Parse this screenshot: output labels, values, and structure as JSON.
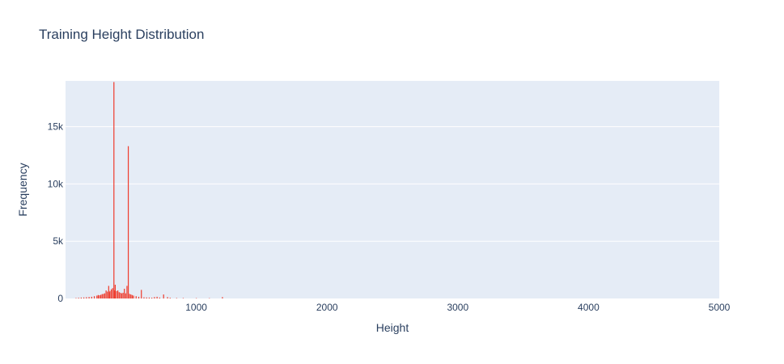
{
  "chart_data": {
    "type": "bar",
    "title": "Training Height Distribution",
    "xlabel": "Height",
    "ylabel": "Frequency",
    "xlim": [
      0,
      5000
    ],
    "ylim": [
      0,
      19000
    ],
    "x_ticks": [
      1000,
      2000,
      3000,
      4000,
      5000
    ],
    "x_tick_labels": [
      "1000",
      "2000",
      "3000",
      "4000",
      "5000"
    ],
    "y_ticks": [
      0,
      5000,
      10000,
      15000
    ],
    "y_tick_labels": [
      "0",
      "5k",
      "10k",
      "15k"
    ],
    "grid": true,
    "legend": "none",
    "bar_color": "#ef3b2c",
    "plot_background": "#e5ecf6",
    "series": [
      {
        "x": [
          80,
          100,
          120,
          140,
          160,
          180,
          200,
          220,
          240,
          250,
          260,
          270,
          280,
          290,
          300,
          310,
          320,
          330,
          333,
          340,
          350,
          360,
          370,
          375,
          380,
          390,
          400,
          410,
          420,
          430,
          440,
          450,
          460,
          470,
          480,
          490,
          500,
          510,
          520,
          540,
          560,
          580,
          600,
          620,
          640,
          660,
          680,
          700,
          720,
          750,
          780,
          800,
          850,
          900,
          1000,
          1100,
          1200
        ],
        "values": [
          40,
          60,
          80,
          90,
          110,
          130,
          150,
          200,
          250,
          300,
          280,
          320,
          380,
          400,
          450,
          700,
          600,
          1100,
          550,
          650,
          800,
          900,
          18900,
          700,
          1200,
          650,
          700,
          550,
          500,
          450,
          500,
          850,
          450,
          1100,
          13300,
          400,
          350,
          300,
          250,
          200,
          150,
          750,
          100,
          90,
          80,
          70,
          120,
          150,
          80,
          350,
          120,
          60,
          40,
          40,
          30,
          30,
          120
        ]
      }
    ]
  }
}
